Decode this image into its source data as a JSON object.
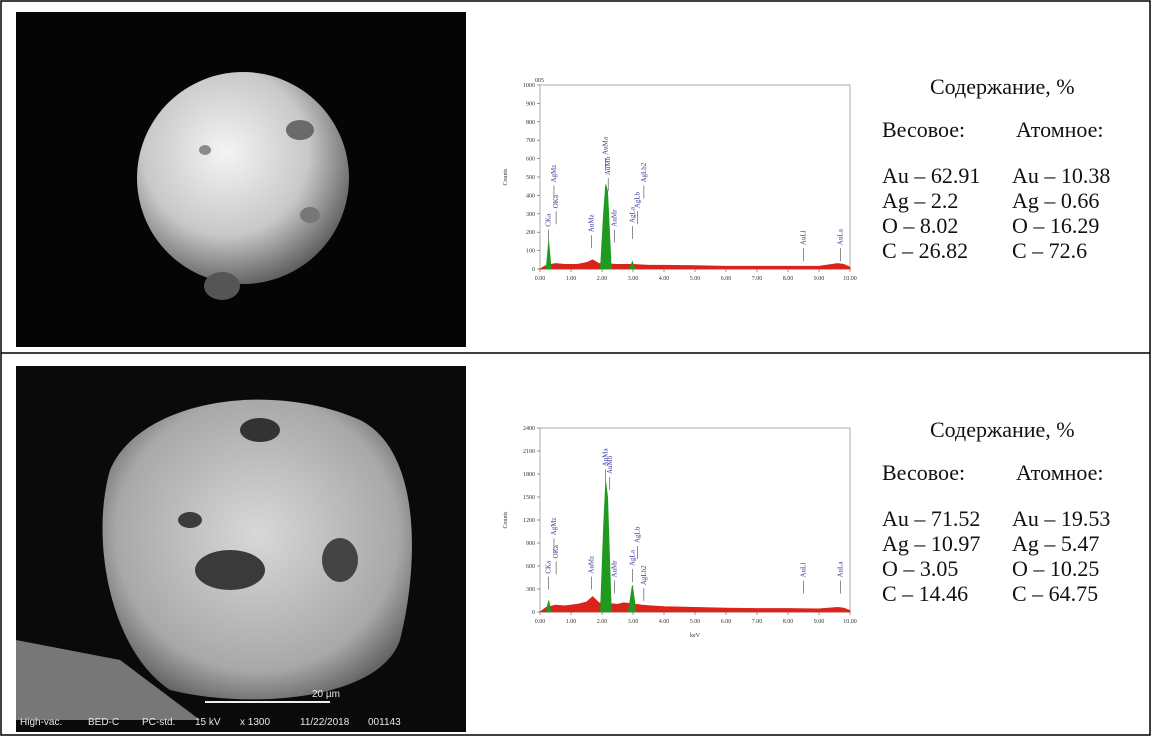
{
  "panels": [
    {
      "image": {},
      "table": {
        "title": "Содержание, %",
        "columns": [
          "Весовое:",
          "Атомное:"
        ],
        "rows": [
          [
            "Au – 62.91",
            "Au – 10.38"
          ],
          [
            "Ag – 2.2",
            "Ag – 0.66"
          ],
          [
            "O – 8.02",
            "O – 16.29"
          ],
          [
            "C – 26.82",
            "C – 72.6"
          ]
        ]
      }
    },
    {
      "image": {
        "scale": "20 µm",
        "info": [
          "High-vac.",
          "BED-C",
          "PC-std.",
          "15 kV",
          "x 1300",
          "11/22/2018",
          "001143"
        ]
      },
      "table": {
        "title": "Содержание, %",
        "columns": [
          "Весовое:",
          "Атомное:"
        ],
        "rows": [
          [
            "Au – 71.52",
            "Au – 19.53"
          ],
          [
            "Ag – 10.97",
            "Ag – 5.47"
          ],
          [
            "O – 3.05",
            "O – 10.25"
          ],
          [
            "C – 14.46",
            "C – 64.75"
          ]
        ]
      }
    }
  ],
  "chart_data": [
    {
      "type": "area",
      "title": "005",
      "ylabel": "Counts",
      "xlim": [
        0,
        10
      ],
      "ylim": [
        0,
        1000
      ],
      "xticks": [
        {
          "value": 0,
          "label": "0.00"
        },
        {
          "value": 1,
          "label": "1.00"
        },
        {
          "value": 2,
          "label": "2.00"
        },
        {
          "value": 3,
          "label": "3.00"
        },
        {
          "value": 4,
          "label": "4.00"
        },
        {
          "value": 5,
          "label": "5.00"
        },
        {
          "value": 6,
          "label": "6.00"
        },
        {
          "value": 7,
          "label": "7.00"
        },
        {
          "value": 8,
          "label": "8.00"
        },
        {
          "value": 9,
          "label": "9.00"
        },
        {
          "value": 10,
          "label": "10.00"
        }
      ],
      "yticks": [
        0,
        100,
        200,
        300,
        400,
        500,
        600,
        700,
        800,
        900,
        1000
      ],
      "series": [
        {
          "color": "#d9241c",
          "x": [
            0,
            0.2,
            0.5,
            0.8,
            1.2,
            1.5,
            1.7,
            1.9,
            2.5,
            3.0,
            3.5,
            4,
            5,
            6,
            7,
            8,
            9,
            9.6,
            9.8,
            10
          ],
          "values": [
            0,
            20,
            30,
            25,
            25,
            35,
            50,
            30,
            25,
            25,
            20,
            20,
            18,
            15,
            15,
            15,
            15,
            30,
            25,
            10
          ]
        },
        {
          "color": "#1f9a1f",
          "x": [
            0.2,
            0.28,
            0.36,
            0.4,
            1.95,
            2.05,
            2.12,
            2.18,
            2.3,
            2.35,
            2.9,
            2.98,
            3.06
          ],
          "values": [
            0,
            150,
            0,
            null,
            0,
            300,
            460,
            420,
            0,
            null,
            0,
            40,
            0
          ]
        }
      ],
      "annotations": [
        {
          "text": "CKa",
          "x": 0.28,
          "y": 230
        },
        {
          "text": "OKa",
          "x": 0.52,
          "y": 330
        },
        {
          "text": "AgMz",
          "x": 0.45,
          "y": 470
        },
        {
          "text": "AuMz",
          "x": 1.66,
          "y": 200
        },
        {
          "text": "AuMa",
          "x": 2.12,
          "y": 620
        },
        {
          "text": "AuMb",
          "x": 2.2,
          "y": 510
        },
        {
          "text": "AuMr",
          "x": 2.4,
          "y": 230
        },
        {
          "text": "AgLa",
          "x": 2.98,
          "y": 250
        },
        {
          "text": "AgLb",
          "x": 3.15,
          "y": 330
        },
        {
          "text": "AgLb2",
          "x": 3.35,
          "y": 470
        },
        {
          "text": "AuLl",
          "x": 8.5,
          "y": 130
        },
        {
          "text": "AuLa",
          "x": 9.7,
          "y": 130
        }
      ]
    },
    {
      "type": "area",
      "ylabel": "Counts",
      "xlabel": "keV",
      "xlim": [
        0,
        10
      ],
      "ylim": [
        0,
        2400
      ],
      "xticks": [
        {
          "value": 0,
          "label": "0.00"
        },
        {
          "value": 1,
          "label": "1.00"
        },
        {
          "value": 2,
          "label": "2.00"
        },
        {
          "value": 3,
          "label": "3.00"
        },
        {
          "value": 4,
          "label": "4.00"
        },
        {
          "value": 5,
          "label": "5.00"
        },
        {
          "value": 6,
          "label": "6.00"
        },
        {
          "value": 7,
          "label": "7.00"
        },
        {
          "value": 8,
          "label": "8.00"
        },
        {
          "value": 9,
          "label": "9.00"
        },
        {
          "value": 10,
          "label": "10.00"
        }
      ],
      "yticks": [
        0,
        300,
        600,
        900,
        1200,
        1500,
        1800,
        2100,
        2400
      ],
      "series": [
        {
          "color": "#d9241c",
          "x": [
            0,
            0.2,
            0.5,
            0.8,
            1.2,
            1.5,
            1.7,
            1.9,
            2.5,
            2.7,
            3.3,
            3.6,
            4,
            5,
            6,
            7,
            8,
            9,
            9.6,
            9.8,
            10
          ],
          "values": [
            0,
            60,
            90,
            80,
            100,
            130,
            200,
            120,
            100,
            120,
            90,
            80,
            70,
            60,
            50,
            45,
            45,
            40,
            60,
            50,
            20
          ]
        },
        {
          "color": "#1f9a1f",
          "x": [
            0.2,
            0.28,
            0.36,
            0.4,
            1.95,
            2.05,
            2.12,
            2.18,
            2.3,
            2.5,
            2.85,
            2.98,
            3.1
          ],
          "values": [
            0,
            150,
            0,
            null,
            0,
            1100,
            1700,
            1500,
            0,
            null,
            0,
            350,
            0
          ]
        }
      ],
      "annotations": [
        {
          "text": "CKa",
          "x": 0.28,
          "y": 500
        },
        {
          "text": "OKa",
          "x": 0.52,
          "y": 700
        },
        {
          "text": "AgMz",
          "x": 0.45,
          "y": 1000
        },
        {
          "text": "AuMz",
          "x": 1.66,
          "y": 500
        },
        {
          "text": "AuMa",
          "x": 2.12,
          "y": 1900
        },
        {
          "text": "AuMb",
          "x": 2.25,
          "y": 1800
        },
        {
          "text": "AuMr",
          "x": 2.4,
          "y": 450
        },
        {
          "text": "AgLa",
          "x": 2.98,
          "y": 600
        },
        {
          "text": "AgLb",
          "x": 3.15,
          "y": 900
        },
        {
          "text": "AgLb2",
          "x": 3.35,
          "y": 350
        },
        {
          "text": "AuLl",
          "x": 8.5,
          "y": 450
        },
        {
          "text": "AuLa",
          "x": 9.7,
          "y": 450
        }
      ]
    }
  ]
}
